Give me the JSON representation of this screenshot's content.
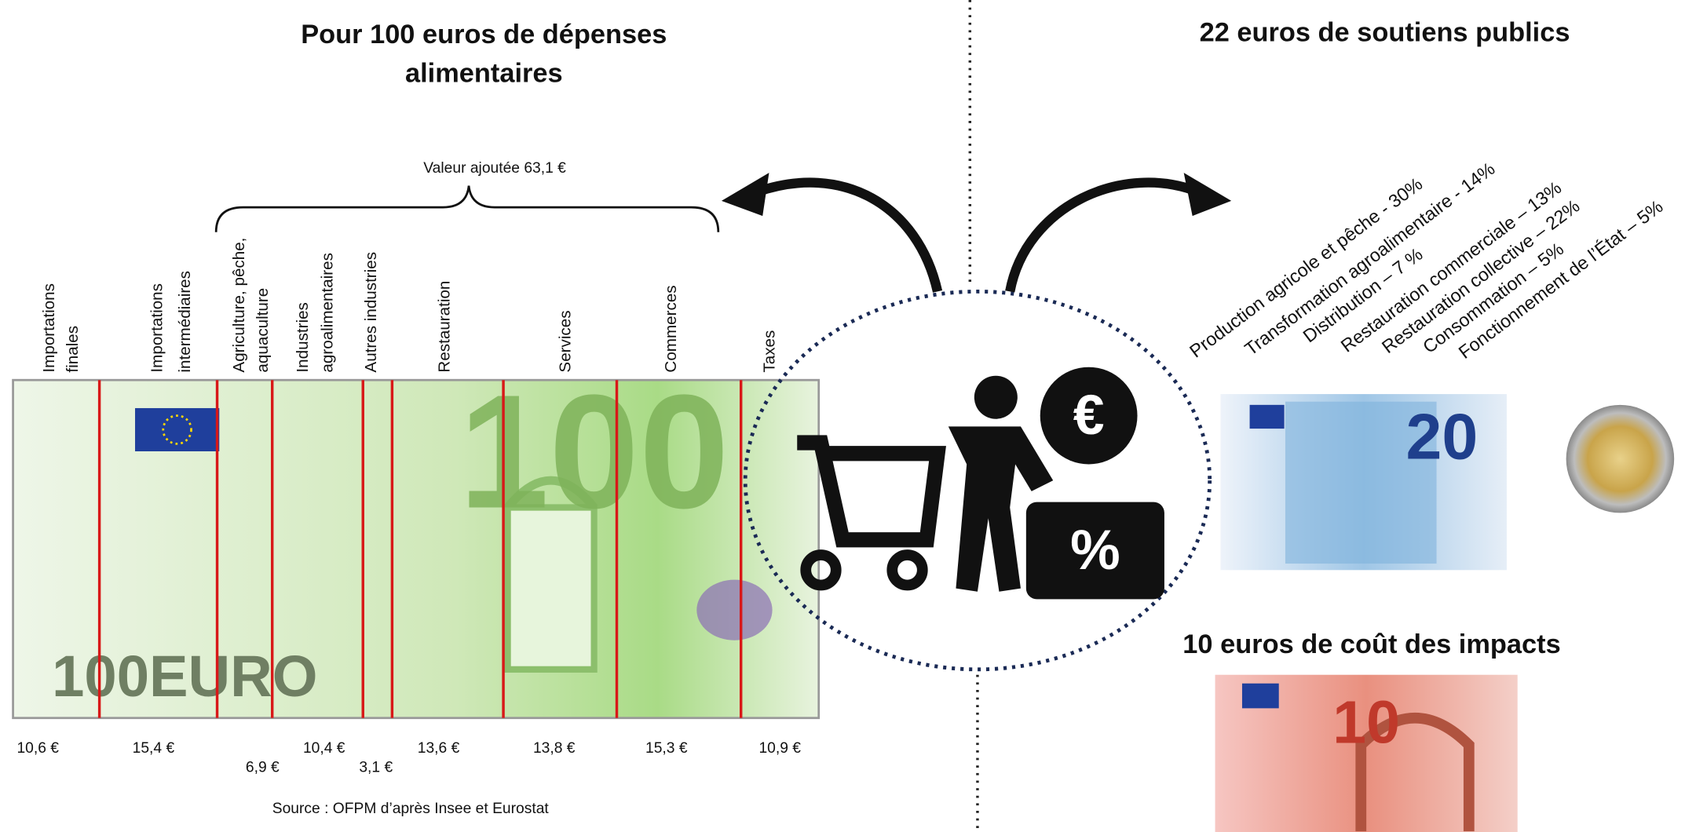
{
  "left": {
    "title_lines": [
      "Pour 100 euros de dépenses",
      "alimentaires"
    ],
    "value_added": "Valeur ajoutée 63,1 €",
    "segments": [
      {
        "label_lines": [
          "Importations",
          "finales"
        ],
        "value": "10,6 €"
      },
      {
        "label_lines": [
          "Importations",
          "intermédiaires"
        ],
        "value": "15,4 €"
      },
      {
        "label_lines": [
          "Agriculture, pêche,",
          "aquaculture"
        ],
        "value": "6,9 €"
      },
      {
        "label_lines": [
          "Industries",
          "agroalimentaires"
        ],
        "value": "10,4 €"
      },
      {
        "label_lines": [
          "Autres industries"
        ],
        "value": "3,1 €"
      },
      {
        "label_lines": [
          "Restauration"
        ],
        "value": "13,6 €"
      },
      {
        "label_lines": [
          "Services"
        ],
        "value": "13,8 €"
      },
      {
        "label_lines": [
          "Commerces"
        ],
        "value": "15,3 €"
      },
      {
        "label_lines": [
          "Taxes"
        ],
        "value": "10,9 €"
      }
    ],
    "source": "Source : OFPM d’après Insee et Eurostat",
    "note": {
      "big": "100",
      "brand": "100EURO"
    }
  },
  "right": {
    "title": "22 euros de soutiens publics",
    "supports": [
      "Production agricole et pêche - 30%",
      "Transformation agroalimentaire - 14%",
      "Distribution – 7 %",
      "Restauration commerciale – 13%",
      "Restauration collective – 22%",
      "Consommation – 5%",
      "Fonctionnement de l’État – 5%"
    ],
    "note20": "20",
    "impacts_title": "10 euros de coût des impacts",
    "note10": "10"
  }
}
